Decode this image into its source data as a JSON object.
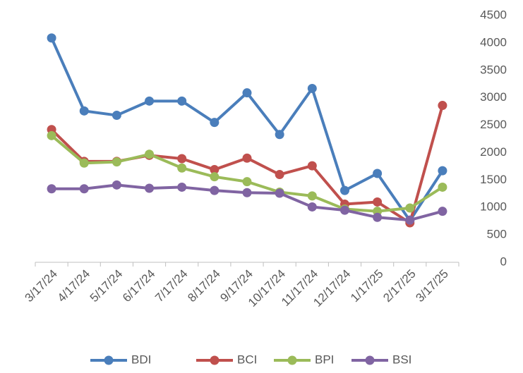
{
  "chart_data": {
    "type": "line",
    "categories": [
      "3/17/24",
      "4/17/24",
      "5/17/24",
      "6/17/24",
      "7/17/24",
      "8/17/24",
      "9/17/24",
      "10/17/24",
      "11/17/24",
      "12/17/24",
      "1/17/25",
      "2/17/25",
      "3/17/25"
    ],
    "series": [
      {
        "name": "BDI",
        "color": "#4a7ebb",
        "values": [
          4090,
          2760,
          2680,
          2940,
          2940,
          2550,
          3090,
          2330,
          3170,
          1310,
          1620,
          760,
          1670
        ]
      },
      {
        "name": "BCI",
        "color": "#c0504d",
        "values": [
          2420,
          1840,
          1840,
          1950,
          1890,
          1690,
          1900,
          1600,
          1760,
          1060,
          1100,
          720,
          2860
        ]
      },
      {
        "name": "BPI",
        "color": "#9bbb59",
        "values": [
          2310,
          1810,
          1830,
          1970,
          1720,
          1560,
          1470,
          1280,
          1210,
          970,
          930,
          990,
          1370
        ]
      },
      {
        "name": "BSI",
        "color": "#8064a2",
        "values": [
          1340,
          1340,
          1410,
          1350,
          1370,
          1310,
          1270,
          1260,
          1010,
          950,
          820,
          770,
          930
        ]
      }
    ],
    "ylim": [
      0,
      4500
    ],
    "yticks": [
      0,
      500,
      1000,
      1500,
      2000,
      2500,
      3000,
      3500,
      4000,
      4500
    ],
    "y_axis_side": "right",
    "grid": false,
    "legend": "bottom"
  }
}
